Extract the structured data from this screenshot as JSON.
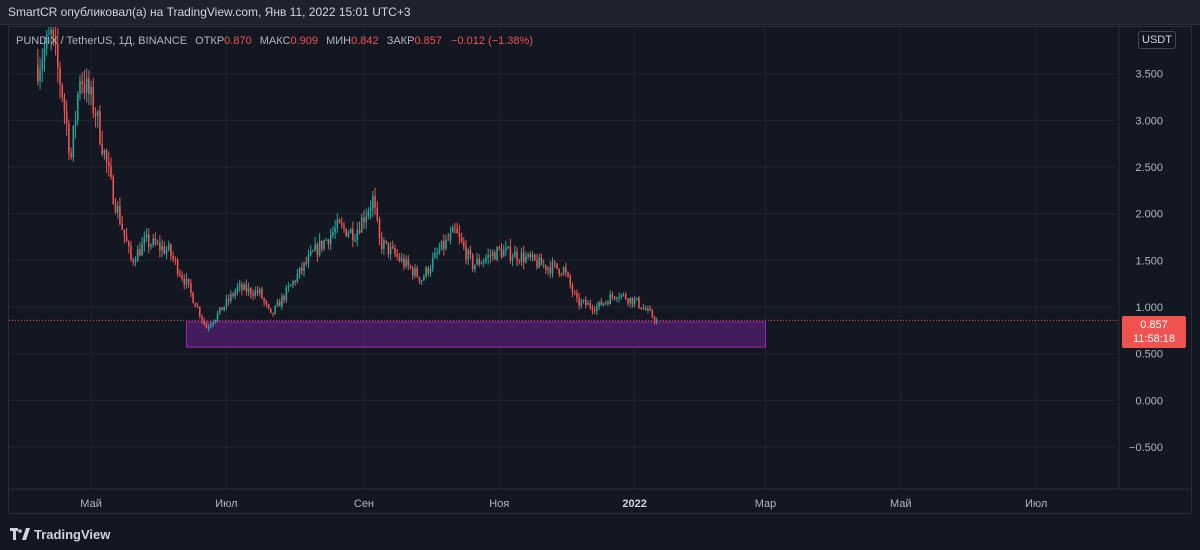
{
  "header": {
    "attribution": "SmartCR опубликовал(а) на TradingView.com, Янв 11, 2022 15:01 UTC+3"
  },
  "legend": {
    "symbol": "PUNDIX / TetherUS, 1Д, BINANCE",
    "open_label": "ОТКР",
    "open_value": "0.870",
    "high_label": "МАКС",
    "high_value": "0.909",
    "low_label": "МИН",
    "low_value": "0.842",
    "close_label": "ЗАКР",
    "close_value": "0.857",
    "change": "−0.012 (−1.38%)"
  },
  "currency_button": "USDT",
  "last_price": {
    "price": "0.857",
    "countdown": "11:58:18"
  },
  "colors": {
    "up": "#26a69a",
    "down": "#ef5350",
    "zone_fill": "#4a1f66",
    "zone_border": "#9c27b0",
    "background": "#131722",
    "grid": "#1f2431"
  },
  "footer": {
    "brand": "TradingView",
    "logo_icon": "tradingview-logo-icon"
  },
  "chart_data": {
    "type": "candlestick",
    "y_axis": {
      "ticks": [
        "3.500",
        "3.000",
        "2.500",
        "2.000",
        "1.500",
        "1.000",
        "0.500",
        "0.000",
        "−0.500"
      ],
      "tick_values": [
        3.5,
        3.0,
        2.5,
        2.0,
        1.5,
        1.0,
        0.5,
        0.0,
        -0.5
      ],
      "ylim": [
        -0.95,
        4.0
      ]
    },
    "x_axis": {
      "ticks": [
        "Май",
        "Июл",
        "Сен",
        "Ноя",
        "2022",
        "Мар",
        "Май",
        "Июл"
      ],
      "tick_dates": [
        "2021-05-01",
        "2021-07-01",
        "2021-09-01",
        "2021-11-01",
        "2022-01-01",
        "2022-03-01",
        "2022-05-01",
        "2022-07-01"
      ],
      "xlim": [
        "2021-03-25",
        "2022-08-06"
      ]
    },
    "price_path": [
      {
        "date": "2021-04-07",
        "price": 3.6
      },
      {
        "date": "2021-04-13",
        "price": 3.9
      },
      {
        "date": "2021-04-18",
        "price": 3.3
      },
      {
        "date": "2021-04-22",
        "price": 2.6
      },
      {
        "date": "2021-04-26",
        "price": 3.5
      },
      {
        "date": "2021-05-03",
        "price": 3.1
      },
      {
        "date": "2021-05-10",
        "price": 2.3
      },
      {
        "date": "2021-05-19",
        "price": 1.5
      },
      {
        "date": "2021-05-26",
        "price": 1.7
      },
      {
        "date": "2021-06-05",
        "price": 1.6
      },
      {
        "date": "2021-06-13",
        "price": 1.25
      },
      {
        "date": "2021-06-22",
        "price": 0.78
      },
      {
        "date": "2021-06-28",
        "price": 0.95
      },
      {
        "date": "2021-07-06",
        "price": 1.2
      },
      {
        "date": "2021-07-16",
        "price": 1.15
      },
      {
        "date": "2021-07-21",
        "price": 0.9
      },
      {
        "date": "2021-08-01",
        "price": 1.3
      },
      {
        "date": "2021-08-10",
        "price": 1.6
      },
      {
        "date": "2021-08-20",
        "price": 1.85
      },
      {
        "date": "2021-08-28",
        "price": 1.8
      },
      {
        "date": "2021-09-05",
        "price": 2.15
      },
      {
        "date": "2021-09-08",
        "price": 1.7
      },
      {
        "date": "2021-09-20",
        "price": 1.45
      },
      {
        "date": "2021-09-27",
        "price": 1.3
      },
      {
        "date": "2021-10-05",
        "price": 1.6
      },
      {
        "date": "2021-10-12",
        "price": 1.8
      },
      {
        "date": "2021-10-20",
        "price": 1.45
      },
      {
        "date": "2021-11-01",
        "price": 1.6
      },
      {
        "date": "2021-11-10",
        "price": 1.55
      },
      {
        "date": "2021-11-20",
        "price": 1.45
      },
      {
        "date": "2021-11-30",
        "price": 1.4
      },
      {
        "date": "2021-12-06",
        "price": 1.05
      },
      {
        "date": "2021-12-15",
        "price": 1.0
      },
      {
        "date": "2021-12-24",
        "price": 1.15
      },
      {
        "date": "2022-01-02",
        "price": 1.05
      },
      {
        "date": "2022-01-11",
        "price": 0.857
      }
    ],
    "last_close": 0.857,
    "support_zone": {
      "price_top": 0.84,
      "price_bottom": 0.57,
      "date_start": "2021-06-13",
      "date_end": "2022-03-01"
    },
    "grid": true
  }
}
